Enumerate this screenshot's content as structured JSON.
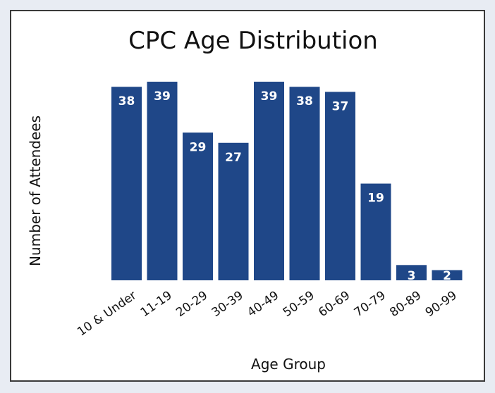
{
  "chart_data": {
    "type": "bar",
    "title": "CPC Age Distribution",
    "xlabel": "Age Group",
    "ylabel": "Number of Attendees",
    "categories": [
      "10 & Under",
      "11-19",
      "20-29",
      "30-39",
      "40-49",
      "50-59",
      "60-69",
      "70-79",
      "80-89",
      "90-99"
    ],
    "values": [
      38,
      39,
      29,
      27,
      39,
      38,
      37,
      19,
      3,
      2
    ],
    "ylim": [
      0,
      39
    ],
    "grid": false,
    "legend": "none",
    "bar_color": "#1f4788",
    "value_label_color": "#ffffff"
  }
}
